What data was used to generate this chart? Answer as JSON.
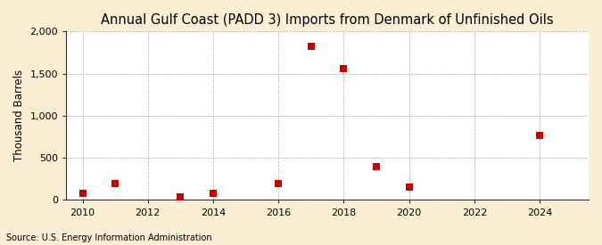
{
  "title": "Annual Gulf Coast (PADD 3) Imports from Denmark of Unfinished Oils",
  "ylabel": "Thousand Barrels",
  "source": "Source: U.S. Energy Information Administration",
  "years": [
    2010,
    2011,
    2013,
    2014,
    2016,
    2017,
    2018,
    2019,
    2020,
    2024
  ],
  "values": [
    75,
    200,
    40,
    80,
    200,
    1820,
    1560,
    400,
    150,
    770
  ],
  "marker_color": "#cc0000",
  "marker_size": 36,
  "xlim": [
    2009.5,
    2025.5
  ],
  "ylim": [
    0,
    2000
  ],
  "yticks": [
    0,
    500,
    1000,
    1500,
    2000
  ],
  "xticks": [
    2010,
    2012,
    2014,
    2016,
    2018,
    2020,
    2022,
    2024
  ],
  "figure_bg_color": "#faefd4",
  "plot_bg_color": "#ffffff",
  "grid_color": "#aaaaaa",
  "spine_color": "#333333",
  "title_fontsize": 10.5,
  "label_fontsize": 8.5,
  "tick_fontsize": 8,
  "source_fontsize": 7
}
